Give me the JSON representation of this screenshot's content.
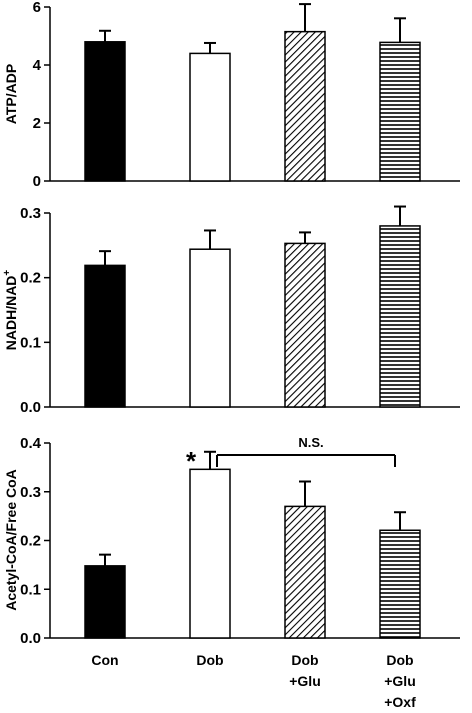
{
  "chart_data": [
    {
      "type": "bar",
      "ylabel": "ATP/ADP",
      "ylim": [
        0,
        6
      ],
      "yticks": [
        "0",
        "2",
        "4",
        "6"
      ],
      "categories": [
        "Con",
        "Dob",
        "Dob +Glu",
        "Dob +Glu +Oxf"
      ],
      "values": [
        4.8,
        4.4,
        5.15,
        4.78
      ],
      "errors": [
        0.38,
        0.36,
        0.95,
        0.83
      ]
    },
    {
      "type": "bar",
      "ylabel": "NADH/NAD",
      "ylabel_sup": "+",
      "ylim": [
        0,
        0.3
      ],
      "yticks": [
        "0.0",
        "0.1",
        "0.2",
        "0.3"
      ],
      "categories": [
        "Con",
        "Dob",
        "Dob +Glu",
        "Dob +Glu +Oxf"
      ],
      "values": [
        0.219,
        0.244,
        0.253,
        0.28
      ],
      "errors": [
        0.022,
        0.029,
        0.017,
        0.03
      ]
    },
    {
      "type": "bar",
      "ylabel": "Acetyl-CoA/Free CoA",
      "ylim": [
        0,
        0.4
      ],
      "yticks": [
        "0.0",
        "0.1",
        "0.2",
        "0.3",
        "0.4"
      ],
      "categories": [
        "Con",
        "Dob",
        "Dob +Glu",
        "Dob +Glu +Oxf"
      ],
      "values": [
        0.148,
        0.346,
        0.27,
        0.221
      ],
      "errors": [
        0.023,
        0.036,
        0.051,
        0.037
      ],
      "annotations": {
        "significance_marker": "*",
        "bracket_label": "N.S."
      }
    }
  ],
  "x_axis": {
    "category_lines": [
      [
        "Con"
      ],
      [
        "Dob"
      ],
      [
        "Dob",
        "+Glu"
      ],
      [
        "Dob",
        "+Glu",
        "+Oxf"
      ]
    ]
  },
  "bar_styles": [
    "solid-black",
    "white",
    "diagonal-hatch",
    "horizontal-hatch"
  ]
}
